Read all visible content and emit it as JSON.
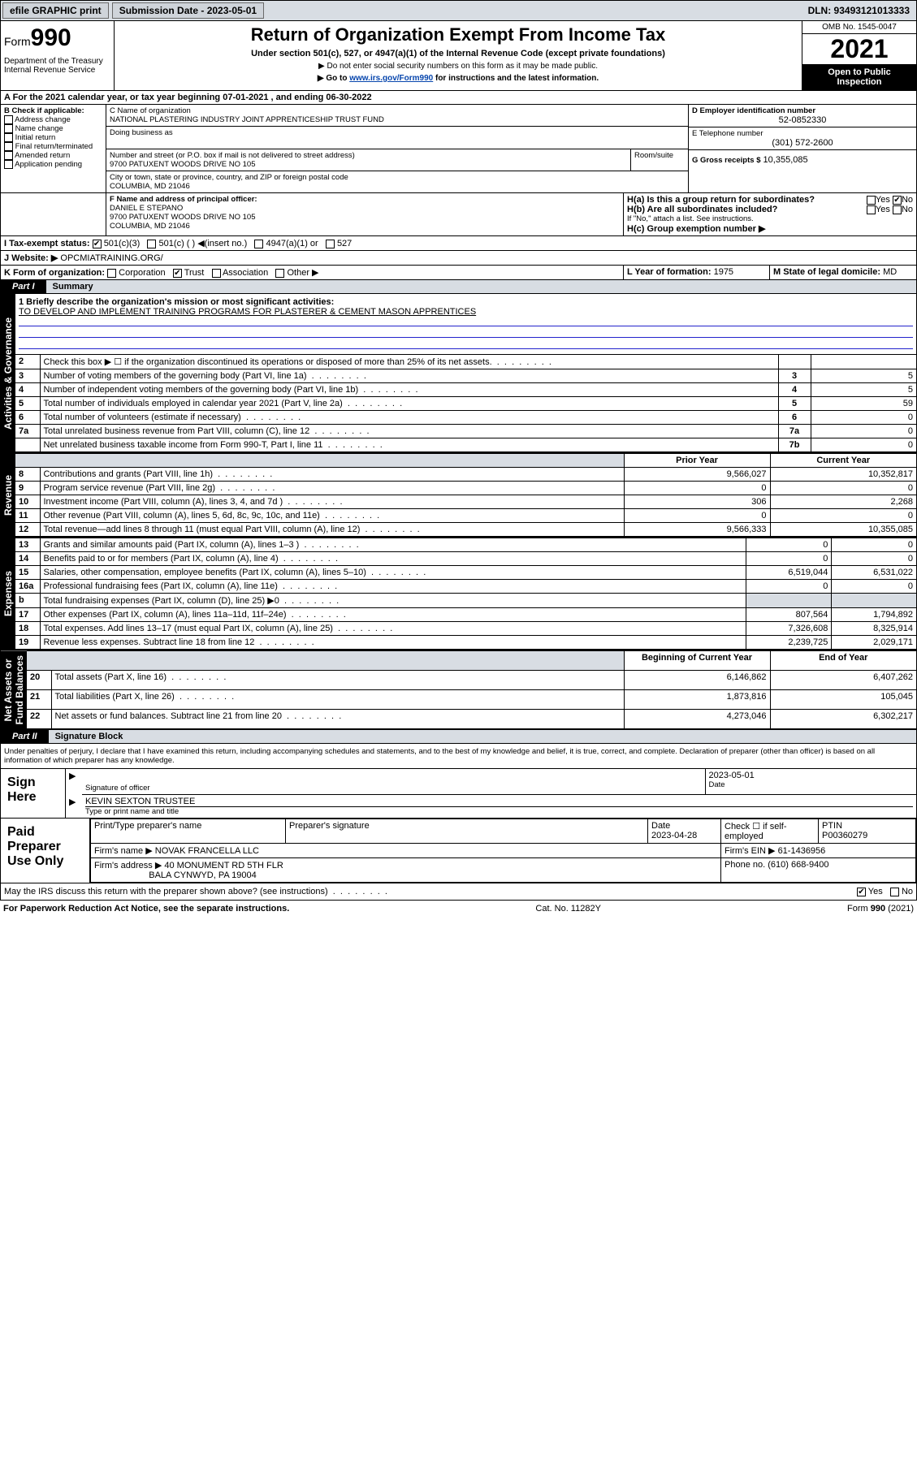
{
  "topbar": {
    "efile_label": "efile GRAPHIC print",
    "submission_label": "Submission Date - 2023-05-01",
    "dln_label": "DLN: 93493121013333"
  },
  "header": {
    "form_word": "Form",
    "form_number": "990",
    "title": "Return of Organization Exempt From Income Tax",
    "subtitle": "Under section 501(c), 527, or 4947(a)(1) of the Internal Revenue Code (except private foundations)",
    "note1": "▶ Do not enter social security numbers on this form as it may be made public.",
    "note2_pre": "▶ Go to ",
    "note2_link": "www.irs.gov/Form990",
    "note2_post": " for instructions and the latest information.",
    "dept": "Department of the Treasury Internal Revenue Service",
    "omb": "OMB No. 1545-0047",
    "tax_year": "2021",
    "open_public": "Open to Public Inspection"
  },
  "tax_period": {
    "label_pre": "A For the 2021 calendar year, or tax year beginning ",
    "begin": "07-01-2021",
    "middle": " , and ending ",
    "end": "06-30-2022"
  },
  "section_b": {
    "title": "B Check if applicable:",
    "items": [
      "Address change",
      "Name change",
      "Initial return",
      "Final return/terminated",
      "Amended return",
      "Application pending"
    ]
  },
  "section_c": {
    "label": "C Name of organization",
    "name": "NATIONAL PLASTERING INDUSTRY JOINT APPRENTICESHIP TRUST FUND",
    "dba_label": "Doing business as",
    "addr_label": "Number and street (or P.O. box if mail is not delivered to street address)",
    "room": "Room/suite",
    "street": "9700 PATUXENT WOODS DRIVE NO 105",
    "city_label": "City or town, state or province, country, and ZIP or foreign postal code",
    "city": "COLUMBIA, MD  21046"
  },
  "section_d": {
    "label": "D Employer identification number",
    "value": "52-0852330"
  },
  "section_e": {
    "label": "E Telephone number",
    "value": "(301) 572-2600"
  },
  "section_g": {
    "label": "G Gross receipts $",
    "value": "10,355,085"
  },
  "section_f": {
    "label": "F Name and address of principal officer:",
    "name": "DANIEL E STEPANO",
    "street": "9700 PATUXENT WOODS DRIVE NO 105",
    "city": "COLUMBIA, MD  21046"
  },
  "section_h": {
    "ha_label": "H(a)  Is this a group return for subordinates?",
    "ha_yes": "Yes",
    "ha_no": "No",
    "hb_label": "H(b)  Are all subordinates included?",
    "hb_note": "If \"No,\" attach a list. See instructions.",
    "hc_label": "H(c)  Group exemption number ▶"
  },
  "section_i": {
    "label": "I   Tax-exempt status:",
    "opts": {
      "a": "501(c)(3)",
      "b": "501(c) (   ) ◀(insert no.)",
      "c": "4947(a)(1) or",
      "d": "527"
    }
  },
  "section_j": {
    "label": "J   Website: ▶",
    "value": "OPCMIATRAINING.ORG/"
  },
  "section_k": {
    "label": "K Form of organization:",
    "opts": {
      "corp": "Corporation",
      "trust": "Trust",
      "assoc": "Association",
      "other": "Other ▶"
    }
  },
  "section_l": {
    "label": "L Year of formation:",
    "value": "1975"
  },
  "section_m": {
    "label": "M State of legal domicile:",
    "value": "MD"
  },
  "part1": {
    "tab": "Part I",
    "title": "Summary",
    "colors": {
      "tab_bg": "#000000",
      "tab_fg": "#ffffff",
      "shade": "#d8dde3",
      "line": "#2233aa"
    },
    "line1_label": "1   Briefly describe the organization's mission or most significant activities:",
    "line1_text": "TO DEVELOP AND IMPLEMENT TRAINING PROGRAMS FOR PLASTERER & CEMENT MASON APPRENTICES",
    "rows_a": [
      {
        "n": "2",
        "label": "Check this box ▶ ☐  if the organization discontinued its operations or disposed of more than 25% of its net assets.",
        "box": "",
        "val": ""
      },
      {
        "n": "3",
        "label": "Number of voting members of the governing body (Part VI, line 1a)",
        "box": "3",
        "val": "5"
      },
      {
        "n": "4",
        "label": "Number of independent voting members of the governing body (Part VI, line 1b)",
        "box": "4",
        "val": "5"
      },
      {
        "n": "5",
        "label": "Total number of individuals employed in calendar year 2021 (Part V, line 2a)",
        "box": "5",
        "val": "59"
      },
      {
        "n": "6",
        "label": "Total number of volunteers (estimate if necessary)",
        "box": "6",
        "val": "0"
      },
      {
        "n": "7a",
        "label": "Total unrelated business revenue from Part VIII, column (C), line 12",
        "box": "7a",
        "val": "0"
      },
      {
        "n": "",
        "label": "Net unrelated business taxable income from Form 990-T, Part I, line 11",
        "box": "7b",
        "val": "0"
      }
    ],
    "col_headers": {
      "prior": "Prior Year",
      "current": "Current Year"
    },
    "rows_rev": [
      {
        "n": "8",
        "label": "Contributions and grants (Part VIII, line 1h)",
        "p": "9,566,027",
        "c": "10,352,817"
      },
      {
        "n": "9",
        "label": "Program service revenue (Part VIII, line 2g)",
        "p": "0",
        "c": "0"
      },
      {
        "n": "10",
        "label": "Investment income (Part VIII, column (A), lines 3, 4, and 7d )",
        "p": "306",
        "c": "2,268"
      },
      {
        "n": "11",
        "label": "Other revenue (Part VIII, column (A), lines 5, 6d, 8c, 9c, 10c, and 11e)",
        "p": "0",
        "c": "0"
      },
      {
        "n": "12",
        "label": "Total revenue—add lines 8 through 11 (must equal Part VIII, column (A), line 12)",
        "p": "9,566,333",
        "c": "10,355,085"
      }
    ],
    "rows_exp": [
      {
        "n": "13",
        "label": "Grants and similar amounts paid (Part IX, column (A), lines 1–3 )",
        "p": "0",
        "c": "0"
      },
      {
        "n": "14",
        "label": "Benefits paid to or for members (Part IX, column (A), line 4)",
        "p": "0",
        "c": "0"
      },
      {
        "n": "15",
        "label": "Salaries, other compensation, employee benefits (Part IX, column (A), lines 5–10)",
        "p": "6,519,044",
        "c": "6,531,022"
      },
      {
        "n": "16a",
        "label": "Professional fundraising fees (Part IX, column (A), line 11e)",
        "p": "0",
        "c": "0"
      },
      {
        "n": "b",
        "label": "Total fundraising expenses (Part IX, column (D), line 25) ▶0",
        "p": "",
        "c": ""
      },
      {
        "n": "17",
        "label": "Other expenses (Part IX, column (A), lines 11a–11d, 11f–24e)",
        "p": "807,564",
        "c": "1,794,892"
      },
      {
        "n": "18",
        "label": "Total expenses. Add lines 13–17 (must equal Part IX, column (A), line 25)",
        "p": "7,326,608",
        "c": "8,325,914"
      },
      {
        "n": "19",
        "label": "Revenue less expenses. Subtract line 18 from line 12",
        "p": "2,239,725",
        "c": "2,029,171"
      }
    ],
    "net_headers": {
      "b": "Beginning of Current Year",
      "e": "End of Year"
    },
    "rows_net": [
      {
        "n": "20",
        "label": "Total assets (Part X, line 16)",
        "p": "6,146,862",
        "c": "6,407,262"
      },
      {
        "n": "21",
        "label": "Total liabilities (Part X, line 26)",
        "p": "1,873,816",
        "c": "105,045"
      },
      {
        "n": "22",
        "label": "Net assets or fund balances. Subtract line 21 from line 20",
        "p": "4,273,046",
        "c": "6,302,217"
      }
    ],
    "vtabs": {
      "gov": "Activities & Governance",
      "rev": "Revenue",
      "exp": "Expenses",
      "net": "Net Assets or\nFund Balances"
    }
  },
  "part2": {
    "tab": "Part II",
    "title": "Signature Block",
    "declaration": "Under penalties of perjury, I declare that I have examined this return, including accompanying schedules and statements, and to the best of my knowledge and belief, it is true, correct, and complete. Declaration of preparer (other than officer) is based on all information of which preparer has any knowledge.",
    "sign_here": "Sign Here",
    "sig_officer": "Signature of officer",
    "sig_date_label": "Date",
    "sig_date": "2023-05-01",
    "officer_name": "KEVIN SEXTON TRUSTEE",
    "officer_sub": "Type or print name and title",
    "paid_label": "Paid Preparer Use Only",
    "prep_name_label": "Print/Type preparer's name",
    "prep_sig_label": "Preparer's signature",
    "prep_date_label": "Date",
    "prep_date": "2023-04-28",
    "prep_check_label": "Check ☐ if self-employed",
    "ptin_label": "PTIN",
    "ptin": "P00360279",
    "firm_name_label": "Firm's name    ▶",
    "firm_name": "NOVAK FRANCELLA LLC",
    "firm_ein_label": "Firm's EIN ▶",
    "firm_ein": "61-1436956",
    "firm_addr_label": "Firm's address ▶",
    "firm_addr1": "40 MONUMENT RD 5TH FLR",
    "firm_addr2": "BALA CYNWYD, PA  19004",
    "firm_phone_label": "Phone no.",
    "firm_phone": "(610) 668-9400",
    "discuss": "May the IRS discuss this return with the preparer shown above? (see instructions)",
    "discuss_yes": "Yes",
    "discuss_no": "No"
  },
  "footer": {
    "left": "For Paperwork Reduction Act Notice, see the separate instructions.",
    "mid": "Cat. No. 11282Y",
    "right": "Form 990 (2021)"
  }
}
